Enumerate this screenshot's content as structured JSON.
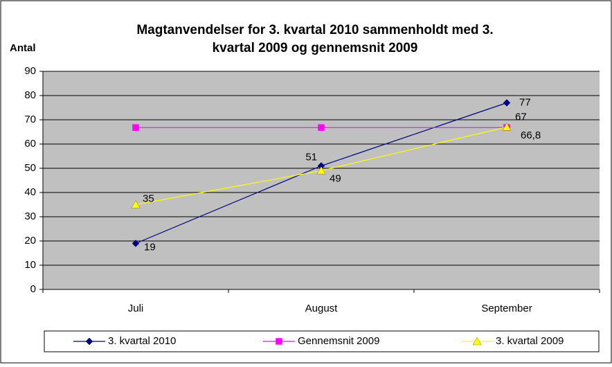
{
  "chart_data": {
    "type": "line",
    "title": [
      "Magtanvendelser for 3. kvartal 2010 sammenholdt med 3.",
      "kvartal 2009 og gennemsnit 2009"
    ],
    "y_label": "Antal",
    "categories": [
      "Juli",
      "August",
      "September"
    ],
    "series": [
      {
        "name": "3. kvartal 2010",
        "color": "#000080",
        "marker": "diamond",
        "values": [
          19,
          51,
          77
        ]
      },
      {
        "name": "Gennemsnit 2009",
        "color": "#ff00ff",
        "marker": "square",
        "values": [
          66.8,
          66.8,
          66.8
        ],
        "value_labels": [
          null,
          null,
          "66,8"
        ]
      },
      {
        "name": "3. kvartal 2009",
        "color": "#ffff00",
        "marker": "triangle",
        "values": [
          35,
          49,
          67
        ]
      }
    ],
    "ylim": [
      0,
      90
    ],
    "yticks": [
      0,
      10,
      20,
      30,
      40,
      50,
      60,
      70,
      80,
      90
    ],
    "grid": true,
    "legend": "bottom"
  }
}
